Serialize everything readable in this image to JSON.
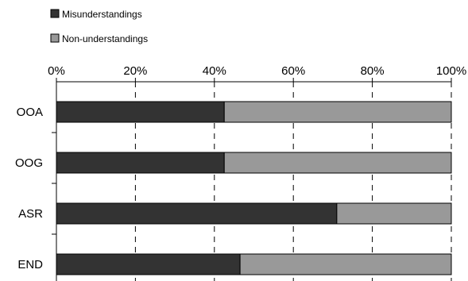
{
  "chart_data": {
    "type": "bar",
    "orientation": "horizontal",
    "stacking": "percent",
    "categories": [
      "OOA",
      "OOG",
      "ASR",
      "END"
    ],
    "series": [
      {
        "name": "Misunderstandings",
        "values": [
          42.5,
          42.5,
          71,
          46.5
        ],
        "color": "#333333"
      },
      {
        "name": "Non-understandings",
        "values": [
          57.5,
          57.5,
          29,
          53.5
        ],
        "color": "#999999"
      }
    ],
    "xlim": [
      0,
      100
    ],
    "x_ticks": [
      "0%",
      "20%",
      "40%",
      "60%",
      "80%",
      "100%"
    ],
    "x_axis_position": "top",
    "grid": "vertical dashed",
    "legend_position": "top-left",
    "title": "",
    "xlabel": "",
    "ylabel": ""
  }
}
